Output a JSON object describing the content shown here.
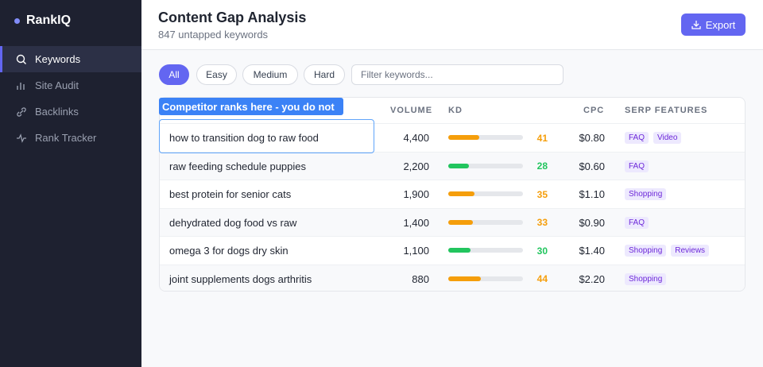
{
  "brand": "RankIQ",
  "nav": [
    "Keywords",
    "Site Audit",
    "Backlinks",
    "Rank Tracker"
  ],
  "header": {
    "title": "Content Gap Analysis",
    "subtitle": "847 untapped keywords",
    "button": "Export"
  },
  "filters": {
    "chips": [
      "All",
      "Easy",
      "Medium",
      "Hard"
    ],
    "search_placeholder": "Filter keywords..."
  },
  "tooltip": "Competitor ranks here - you do not",
  "table": {
    "columns": [
      "VOLUME",
      "KD",
      "CPC",
      "SERP FEATURES"
    ],
    "kd_max": 100,
    "rows": [
      {
        "keyword": "how to transition dog to raw food",
        "volume": "4,400",
        "kd": 41,
        "kd_color": "#f59e0b",
        "cpc": "$0.80",
        "serp": [
          "FAQ",
          "Video"
        ]
      },
      {
        "keyword": "raw feeding schedule puppies",
        "volume": "2,200",
        "kd": 28,
        "kd_color": "#22c55e",
        "cpc": "$0.60",
        "serp": [
          "FAQ"
        ]
      },
      {
        "keyword": "best protein for senior cats",
        "volume": "1,900",
        "kd": 35,
        "kd_color": "#f59e0b",
        "cpc": "$1.10",
        "serp": [
          "Shopping"
        ]
      },
      {
        "keyword": "dehydrated dog food vs raw",
        "volume": "1,400",
        "kd": 33,
        "kd_color": "#f59e0b",
        "cpc": "$0.90",
        "serp": [
          "FAQ"
        ]
      },
      {
        "keyword": "omega 3 for dogs dry skin",
        "volume": "1,100",
        "kd": 30,
        "kd_color": "#22c55e",
        "cpc": "$1.40",
        "serp": [
          "Shopping",
          "Reviews"
        ]
      },
      {
        "keyword": "joint supplements dogs arthritis",
        "volume": "880",
        "kd": 44,
        "kd_color": "#f59e0b",
        "cpc": "$2.20",
        "serp": [
          "Shopping"
        ]
      }
    ]
  }
}
